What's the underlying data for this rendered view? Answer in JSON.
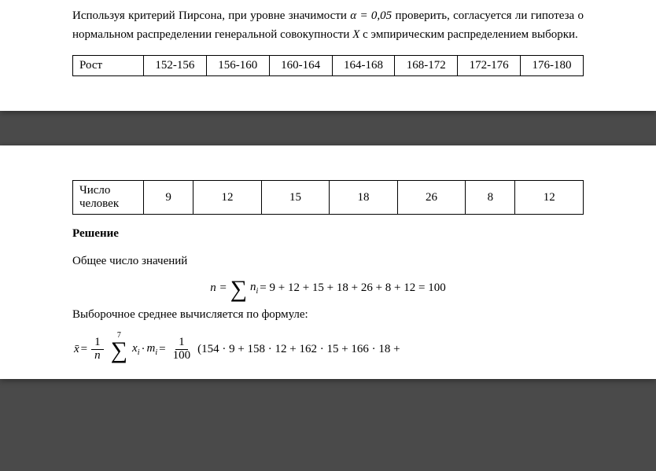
{
  "para1_parts": {
    "a": "Используя критерий Пирсона, при уровне значимости ",
    "alpha": "α = 0,05",
    "b": " проверить, согласуется ли гипотеза о нормальном распределении генеральной совокупности ",
    "Xvar": "X",
    "c": " с эмпирическим распределением выборки."
  },
  "table1": {
    "rowlabel": "Рост",
    "cells": [
      "152-156",
      "156-160",
      "160-164",
      "164-168",
      "168-172",
      "172-176",
      "176-180"
    ]
  },
  "table2": {
    "rowlabel": "Число человек",
    "cells": [
      "9",
      "12",
      "15",
      "18",
      "26",
      "8",
      "12"
    ]
  },
  "solution_title": "Решение",
  "line_total": "Общее число значений",
  "eq_n": {
    "lhs": "n =",
    "sum": "∑",
    "ni": "n",
    "ni_sub": "i",
    "rhs": " = 9 + 12 + 15 + 18 + 26 + 8 + 12 = 100"
  },
  "line_mean": "Выборочное среднее вычисляется по формуле:",
  "eq_mean": {
    "xbar": "x̄",
    "eq": " = ",
    "frac1_num": "1",
    "frac1_den": "n",
    "sum_top": "7",
    "sum_sym": "∑",
    "xm": "x",
    "xm_sub": "i",
    "dot": " · ",
    "m": "m",
    "m_sub": "i",
    "eq2": " = ",
    "frac2_num": "1",
    "frac2_den": "100",
    "tail": " (154 · 9 + 158 · 12 + 162 · 15 + 166 · 18 +"
  },
  "colors": {
    "page_bg": "#ffffff",
    "gap_bg": "#4a4a4a",
    "text": "#000000",
    "border": "#000000"
  }
}
